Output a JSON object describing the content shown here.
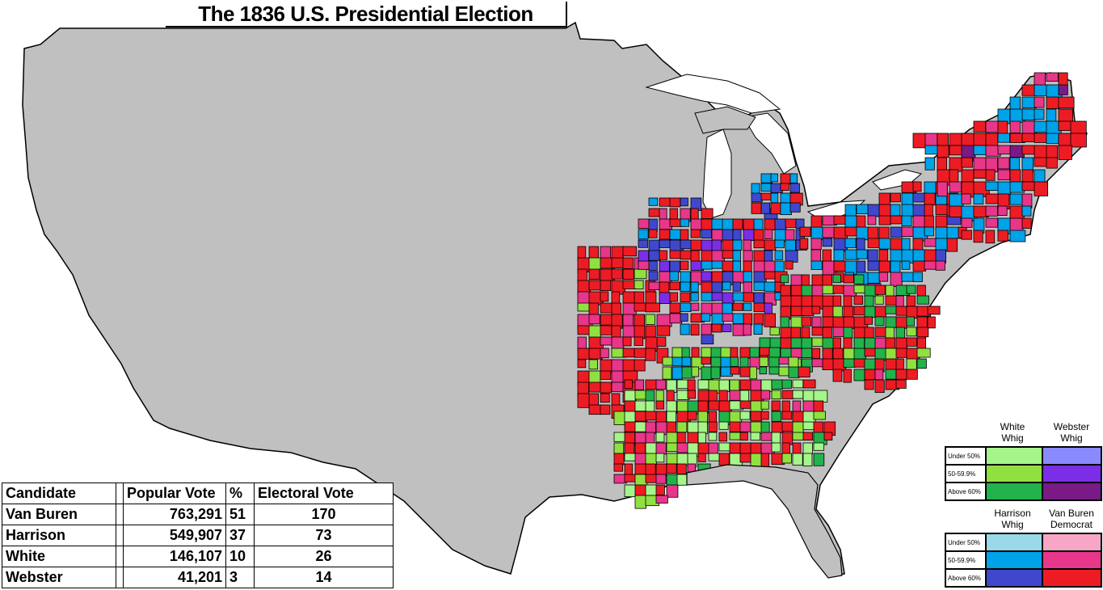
{
  "title": "The 1836 U.S. Presidential Election",
  "table": {
    "headers": [
      "Candidate",
      "Popular Vote",
      "%",
      "Electoral Vote"
    ],
    "rows": [
      {
        "candidate": "Van Buren",
        "popular_vote": "763,291",
        "pct": "51",
        "electoral_vote": "170"
      },
      {
        "candidate": "Harrison",
        "popular_vote": "549,907",
        "pct": "37",
        "electoral_vote": "73"
      },
      {
        "candidate": "White",
        "popular_vote": "146,107",
        "pct": "10",
        "electoral_vote": "26"
      },
      {
        "candidate": "Webster",
        "popular_vote": "41,201",
        "pct": "3",
        "electoral_vote": "14"
      }
    ]
  },
  "legend": {
    "top": {
      "col1_line1": "White",
      "col1_line2": "Whig",
      "col2_line1": "Webster",
      "col2_line2": "Whig",
      "rows": [
        "Under 50%",
        "50-59.9%",
        "Above 60%"
      ],
      "col1_colors": [
        "#a6f58a",
        "#90e040",
        "#22b24c"
      ],
      "col2_colors": [
        "#8a8aff",
        "#7b2ee6",
        "#7a1a86"
      ]
    },
    "bottom": {
      "col1_line1": "Harrison",
      "col1_line2": "Whig",
      "col2_line1": "Van Buren",
      "col2_line2": "Democrat",
      "rows": [
        "Under 50%",
        "50-59.9%",
        "Above 60%"
      ],
      "col1_colors": [
        "#99d9ea",
        "#00a2e8",
        "#3f48cc"
      ],
      "col2_colors": [
        "#f7a6c6",
        "#e8368a",
        "#ed1c24"
      ]
    }
  },
  "colors": {
    "no_vote_territory": "#c0c0c0",
    "background": "#ffffff",
    "border": "#000000"
  }
}
